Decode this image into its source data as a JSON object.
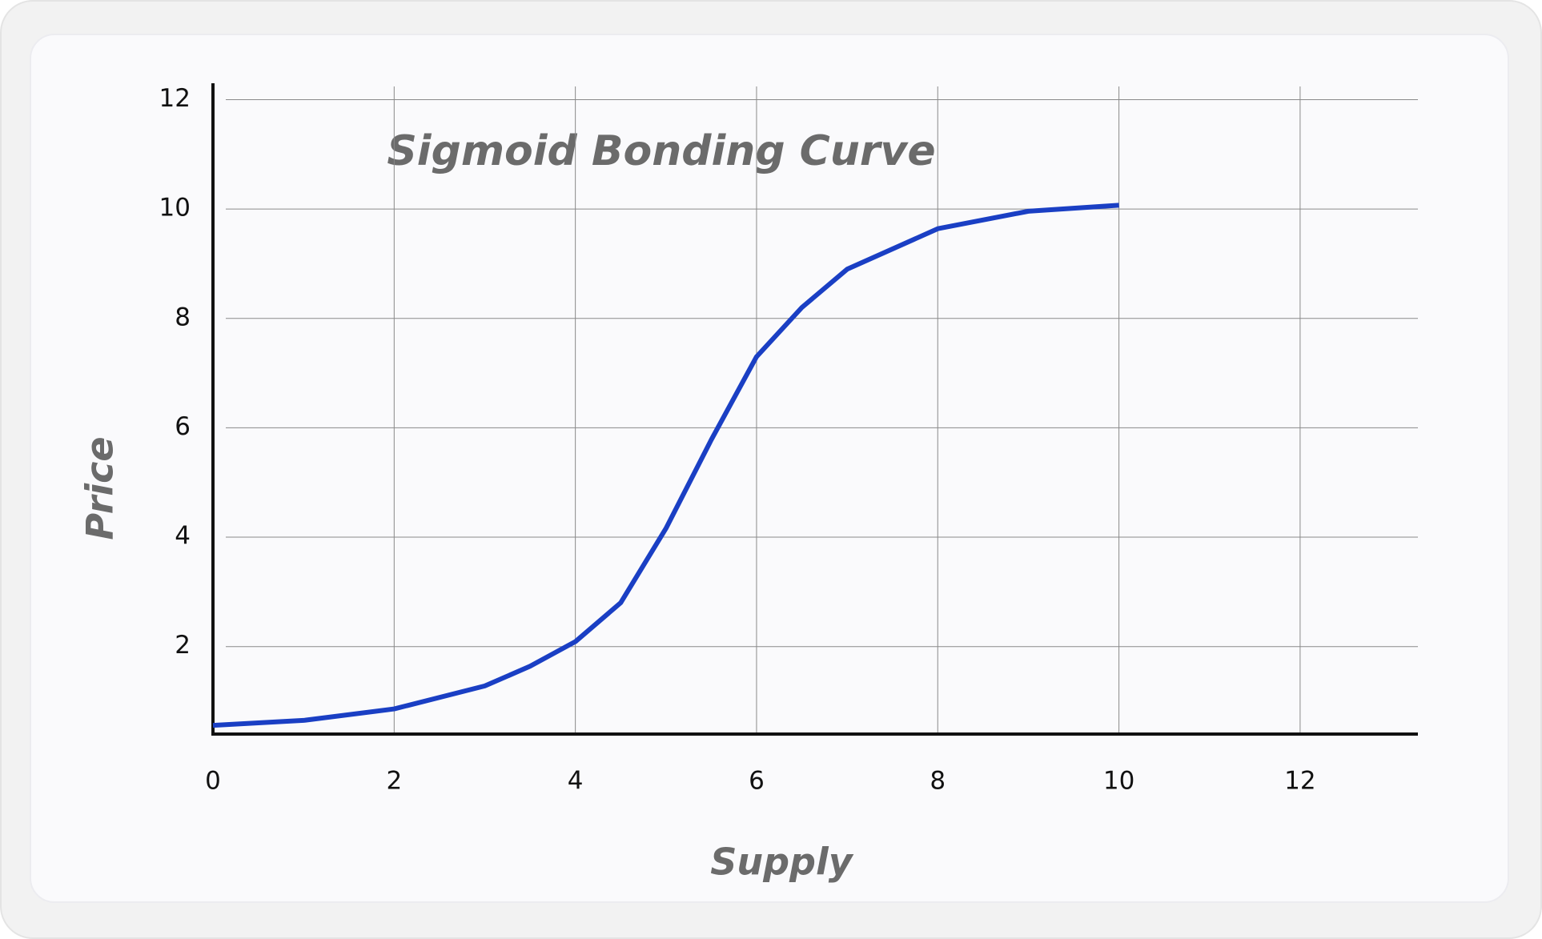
{
  "chart_data": {
    "type": "line",
    "title": "Sigmoid Bonding Curve",
    "x_label": "Supply",
    "y_label": "Price",
    "x": [
      0,
      1,
      2,
      3,
      3.5,
      4,
      4.5,
      5,
      5.5,
      6,
      6.5,
      7,
      8,
      9,
      10
    ],
    "series": [
      {
        "color": "#1a3fc4",
        "values": [
          0.56,
          0.65,
          0.86,
          1.28,
          1.64,
          2.09,
          2.8,
          4.16,
          5.78,
          7.3,
          8.2,
          8.9,
          9.64,
          9.96,
          10.07
        ]
      }
    ],
    "xlim": [
      0,
      13.3
    ],
    "ylim": [
      0.4,
      12.3
    ],
    "xticks": [
      0,
      2,
      4,
      6,
      8,
      10,
      12
    ],
    "yticks": [
      2,
      4,
      6,
      8,
      10,
      12
    ],
    "grid": true
  }
}
